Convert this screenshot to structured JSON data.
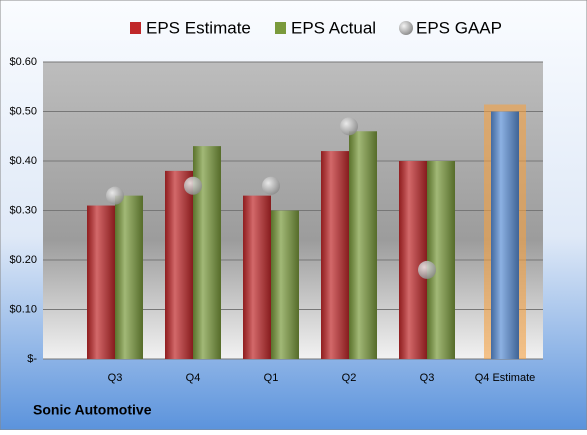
{
  "chart_data": {
    "type": "bar",
    "title": "Sonic Automotive",
    "categories": [
      "Q3",
      "Q4",
      "Q1",
      "Q2",
      "Q3",
      "Q4 Estimate"
    ],
    "series": [
      {
        "name": "EPS Estimate",
        "color": "#c0282a",
        "values": [
          0.31,
          0.38,
          0.33,
          0.42,
          0.4,
          0.5
        ],
        "point_colors": [
          "#c0282a",
          "#c0282a",
          "#c0282a",
          "#c0282a",
          "#c0282a",
          "#5b8fd6"
        ]
      },
      {
        "name": "EPS Actual",
        "color": "#7a9a3c",
        "values": [
          0.33,
          0.43,
          0.3,
          0.46,
          0.4,
          null
        ]
      },
      {
        "name": "EPS GAAP",
        "color": "#a8a8a8",
        "mark": "circle",
        "values": [
          0.33,
          0.35,
          0.35,
          0.47,
          0.18,
          null
        ]
      }
    ],
    "ylim": [
      0,
      0.6
    ],
    "yticks": [
      {
        "value": 0,
        "label": "$-"
      },
      {
        "value": 0.1,
        "label": "$0.10"
      },
      {
        "value": 0.2,
        "label": "$0.20"
      },
      {
        "value": 0.3,
        "label": "$0.30"
      },
      {
        "value": 0.4,
        "label": "$0.40"
      },
      {
        "value": 0.5,
        "label": "$0.50"
      },
      {
        "value": 0.6,
        "label": "$0.60"
      }
    ],
    "grid": true,
    "legend": "top"
  }
}
